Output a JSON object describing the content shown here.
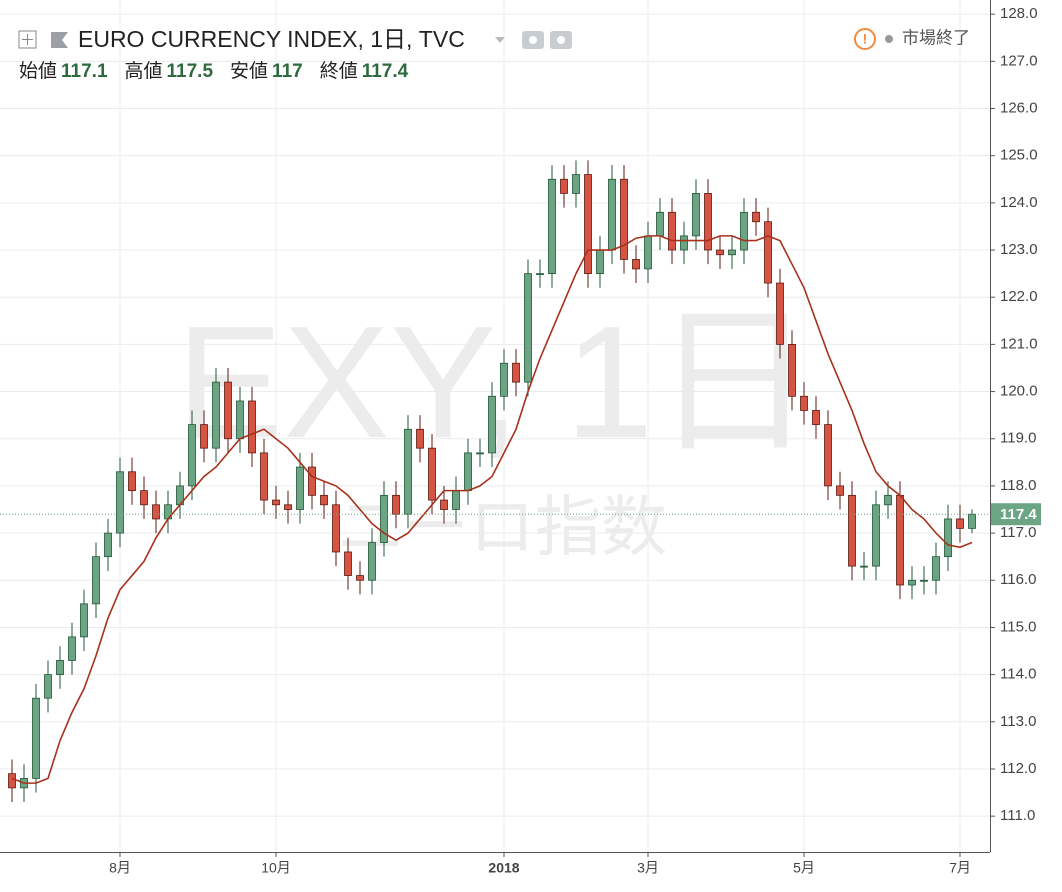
{
  "chart_data": {
    "type": "candlestick",
    "title": "EURO CURRENCY INDEX, 1日, TVC",
    "watermark": "EXY, 1日",
    "watermark_subtitle": "ユーロ指数",
    "status": "市場終了",
    "ohlc_labels": [
      "始値",
      "高値",
      "安値",
      "終値"
    ],
    "categories": [
      null,
      null,
      null,
      null,
      null,
      null,
      null,
      null,
      null,
      "8月",
      null,
      null,
      null,
      null,
      null,
      null,
      null,
      null,
      null,
      null,
      null,
      null,
      "10月",
      null,
      null,
      null,
      null,
      null,
      null,
      null,
      null,
      null,
      null,
      null,
      null,
      null,
      null,
      null,
      null,
      null,
      null,
      "2018",
      null,
      null,
      null,
      null,
      null,
      null,
      null,
      null,
      null,
      null,
      null,
      "3月",
      null,
      null,
      null,
      null,
      null,
      null,
      null,
      null,
      null,
      null,
      null,
      null,
      "5月",
      null,
      null,
      null,
      null,
      null,
      null,
      null,
      null,
      null,
      null,
      null,
      null,
      "7月",
      null
    ],
    "open": [
      111.9,
      111.6,
      111.8,
      113.5,
      114.0,
      114.3,
      114.8,
      115.5,
      116.5,
      117.0,
      118.3,
      117.9,
      117.6,
      117.3,
      117.6,
      118.0,
      119.3,
      118.8,
      120.2,
      119.0,
      119.8,
      118.7,
      117.7,
      117.6,
      117.5,
      118.4,
      117.8,
      117.6,
      116.6,
      116.1,
      116.0,
      116.8,
      117.8,
      117.4,
      119.2,
      118.8,
      117.7,
      117.5,
      117.9,
      118.7,
      118.7,
      119.9,
      120.6,
      120.2,
      122.5,
      122.5,
      124.5,
      124.2,
      124.6,
      122.5,
      123.0,
      124.5,
      122.8,
      122.6,
      123.3,
      123.8,
      123.0,
      123.3,
      124.2,
      123.0,
      122.9,
      123.0,
      123.8,
      123.6,
      122.3,
      121.0,
      119.9,
      119.6,
      119.3,
      118.0,
      117.8,
      116.3,
      116.3,
      117.6,
      117.8,
      115.9,
      116.0,
      116.0,
      116.5,
      117.3,
      117.1
    ],
    "high": [
      112.2,
      112.1,
      113.8,
      114.3,
      114.6,
      115.1,
      115.8,
      116.8,
      117.3,
      118.6,
      118.6,
      118.2,
      117.9,
      117.9,
      118.3,
      119.6,
      119.6,
      120.5,
      120.5,
      120.1,
      120.1,
      119.0,
      118.0,
      117.9,
      118.7,
      118.7,
      118.1,
      117.9,
      116.9,
      116.4,
      117.1,
      118.1,
      118.1,
      119.5,
      119.5,
      119.1,
      118.0,
      118.2,
      119.0,
      119.0,
      120.2,
      120.9,
      120.9,
      122.8,
      122.8,
      124.8,
      124.8,
      124.9,
      124.9,
      123.3,
      124.8,
      124.8,
      123.1,
      123.6,
      124.1,
      124.1,
      123.6,
      124.5,
      124.5,
      123.3,
      123.3,
      124.1,
      124.1,
      123.9,
      122.6,
      121.3,
      120.2,
      119.9,
      119.6,
      118.3,
      118.1,
      116.6,
      117.9,
      118.1,
      118.1,
      116.3,
      116.3,
      116.8,
      117.6,
      117.6,
      117.5
    ],
    "low": [
      111.3,
      111.3,
      111.5,
      113.2,
      113.7,
      114.0,
      114.5,
      115.2,
      116.2,
      116.7,
      117.6,
      117.3,
      117.0,
      117.0,
      117.3,
      117.7,
      118.5,
      118.5,
      118.7,
      118.7,
      118.4,
      117.4,
      117.3,
      117.2,
      117.2,
      117.5,
      117.3,
      116.3,
      115.8,
      115.7,
      115.7,
      116.5,
      117.1,
      117.1,
      118.5,
      117.4,
      117.2,
      117.2,
      117.6,
      118.4,
      118.4,
      119.6,
      119.9,
      119.9,
      122.2,
      122.2,
      123.9,
      123.9,
      122.2,
      122.2,
      122.7,
      122.5,
      122.3,
      122.3,
      123.0,
      122.7,
      122.7,
      123.0,
      122.7,
      122.6,
      122.6,
      122.7,
      123.3,
      122.0,
      120.7,
      119.6,
      119.3,
      119.0,
      117.7,
      117.5,
      116.0,
      116.0,
      116.0,
      117.3,
      115.6,
      115.6,
      115.7,
      115.7,
      116.2,
      116.8,
      117.0
    ],
    "close": [
      111.6,
      111.8,
      113.5,
      114.0,
      114.3,
      114.8,
      115.5,
      116.5,
      117.0,
      118.3,
      117.9,
      117.6,
      117.3,
      117.6,
      118.0,
      119.3,
      118.8,
      120.2,
      119.0,
      119.8,
      118.7,
      117.7,
      117.6,
      117.5,
      118.4,
      117.8,
      117.6,
      116.6,
      116.1,
      116.0,
      116.8,
      117.8,
      117.4,
      119.2,
      118.8,
      117.7,
      117.5,
      117.9,
      118.7,
      118.7,
      119.9,
      120.6,
      120.2,
      122.5,
      122.5,
      124.5,
      124.2,
      124.6,
      122.5,
      123.0,
      124.5,
      122.8,
      122.6,
      123.3,
      123.8,
      123.0,
      123.3,
      124.2,
      123.0,
      122.9,
      123.0,
      123.8,
      123.6,
      122.3,
      121.0,
      119.9,
      119.6,
      119.3,
      118.0,
      117.8,
      116.3,
      116.3,
      117.6,
      117.8,
      115.9,
      116.0,
      116.0,
      116.5,
      117.3,
      117.1,
      117.4
    ],
    "moving_average": [
      111.8,
      111.7,
      111.7,
      111.8,
      112.6,
      113.2,
      113.7,
      114.4,
      115.2,
      115.8,
      116.1,
      116.4,
      116.9,
      117.3,
      117.6,
      117.9,
      118.2,
      118.4,
      118.7,
      119.0,
      119.1,
      119.2,
      119.0,
      118.8,
      118.5,
      118.2,
      118.1,
      118.0,
      117.8,
      117.5,
      117.2,
      117.0,
      116.85,
      117.0,
      117.3,
      117.6,
      117.9,
      117.9,
      117.9,
      118.0,
      118.2,
      118.7,
      119.2,
      120.0,
      120.7,
      121.3,
      121.9,
      122.5,
      123.0,
      123.0,
      123.0,
      123.1,
      123.25,
      123.3,
      123.3,
      123.2,
      123.2,
      123.2,
      123.2,
      123.3,
      123.3,
      123.2,
      123.2,
      123.3,
      123.2,
      122.7,
      122.2,
      121.5,
      120.8,
      120.2,
      119.6,
      118.9,
      118.3,
      118.0,
      117.8,
      117.5,
      117.3,
      117.0,
      116.75,
      116.7,
      116.8
    ],
    "up_color": "#6ba583",
    "down_color": "#d75442",
    "ma_color": "#a8311c",
    "ylim": [
      110.24,
      128.3
    ],
    "yticks": [
      {
        "value": 111,
        "label": "111.0"
      },
      {
        "value": 112,
        "label": "112.0"
      },
      {
        "value": 113,
        "label": "113.0"
      },
      {
        "value": 114,
        "label": "114.0"
      },
      {
        "value": 115,
        "label": "115.0"
      },
      {
        "value": 116,
        "label": "116.0"
      },
      {
        "value": 117,
        "label": "117.0"
      },
      {
        "value": 118,
        "label": "118.0"
      },
      {
        "value": 119,
        "label": "119.0"
      },
      {
        "value": 120,
        "label": "120.0"
      },
      {
        "value": 121,
        "label": "121.0"
      },
      {
        "value": 122,
        "label": "122.0"
      },
      {
        "value": 123,
        "label": "123.0"
      },
      {
        "value": 124,
        "label": "124.0"
      },
      {
        "value": 125,
        "label": "125.0"
      },
      {
        "value": 126,
        "label": "126.0"
      },
      {
        "value": 127,
        "label": "127.0"
      },
      {
        "value": 128,
        "label": "128.0"
      }
    ],
    "grid": true
  }
}
